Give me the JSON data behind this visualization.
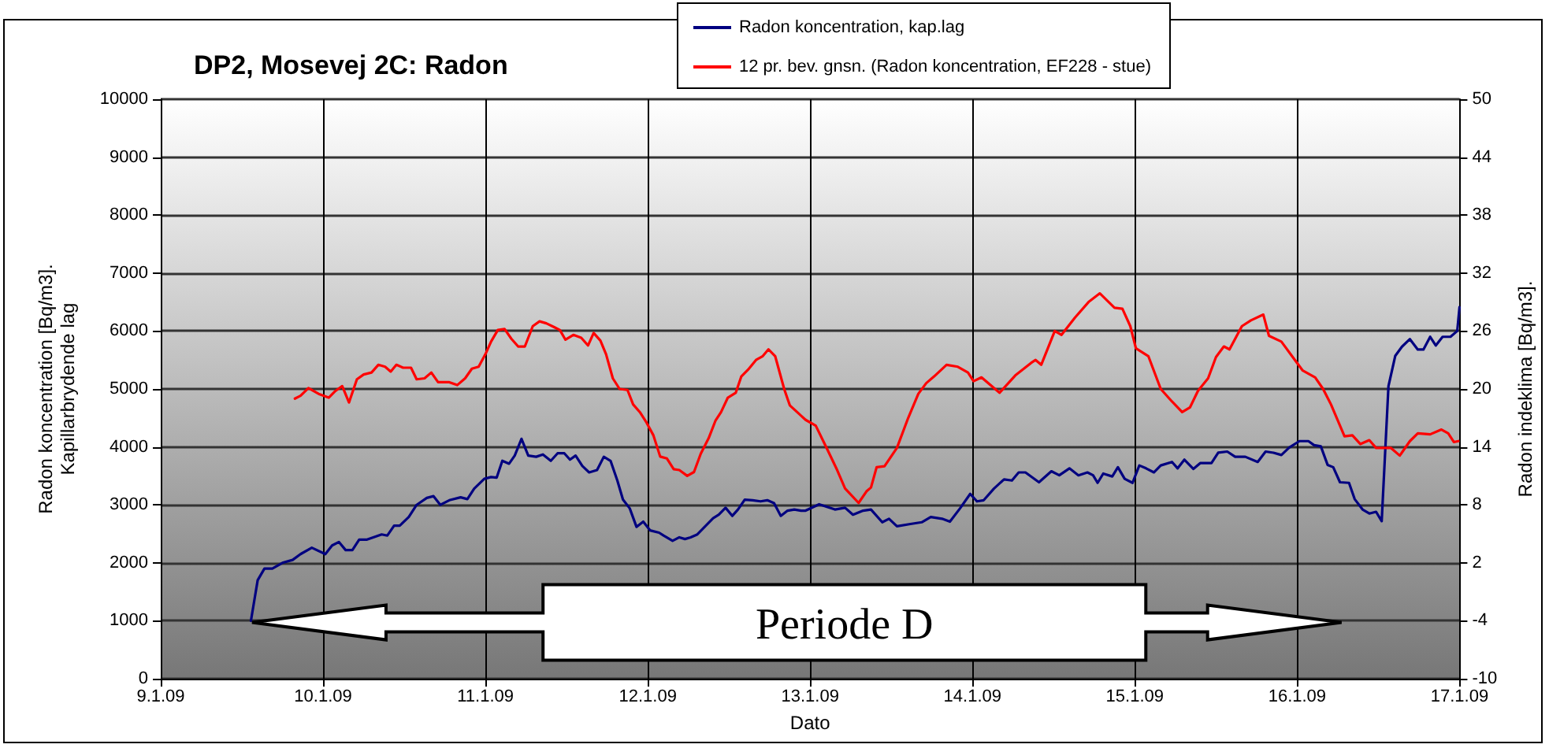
{
  "chart_data": {
    "type": "line",
    "title": "DP2, Mosevej 2C: Radon",
    "xlabel": "Dato",
    "ylabel": "Radon koncentration [Bq/m3].\nKapillarbrydende lag",
    "y2label": "Radon indeklima [Bq/m3].",
    "xlim": [
      "--01-09",
      "--01-17"
    ],
    "xticks": [
      {
        "value": "--01-09",
        "label": "9.1.09"
      },
      {
        "value": "--01-10",
        "label": "10.1.09"
      },
      {
        "value": "--01-11",
        "label": "11.1.09"
      },
      {
        "value": "--01-12",
        "label": "12.1.09"
      },
      {
        "value": "--01-13",
        "label": "13.1.09"
      },
      {
        "value": "--01-14",
        "label": "14.1.09"
      },
      {
        "value": "--01-15",
        "label": "15.1.09"
      },
      {
        "value": "--01-16",
        "label": "16.1.09"
      },
      {
        "value": "--01-17",
        "label": "17.1.09"
      }
    ],
    "ylim": [
      0,
      10000
    ],
    "yticks": [
      0,
      1000,
      2000,
      3000,
      4000,
      5000,
      6000,
      7000,
      8000,
      9000,
      10000
    ],
    "y2lim": [
      -10,
      50
    ],
    "y2ticks": [
      -10,
      -4,
      2,
      8,
      14,
      20,
      26,
      32,
      38,
      44,
      50
    ],
    "grid": true,
    "legend": "top",
    "marker": "none",
    "annotations": [
      "Periode D"
    ],
    "series": [
      {
        "name": "Radon koncentration, kap.lag",
        "color": "#000080",
        "x": [
          "--01-09T13:20",
          "--01-09T14:20",
          "--01-09T15:20",
          "--01-09T16:30",
          "--01-09T18:00",
          "--01-09T19:30",
          "--01-09T20:40",
          "--01-09T22:20",
          "--01-10T00:20",
          "--01-10T01:20",
          "--01-10T02:20",
          "--01-10T03:20",
          "--01-10T04:20",
          "--01-10T05:20",
          "--01-10T06:30",
          "--01-10T08:40",
          "--01-10T09:30",
          "--01-10T10:30",
          "--01-10T11:20",
          "--01-10T12:40",
          "--01-10T13:50",
          "--01-10T15:20",
          "--01-10T16:20",
          "--01-10T17:20",
          "--01-10T18:40",
          "--01-10T20:20",
          "--01-10T21:20",
          "--01-10T22:20",
          "--01-10T23:50",
          "--01-11T00:50",
          "--01-11T01:40",
          "--01-11T02:30",
          "--01-11T03:30",
          "--01-11T04:20",
          "--01-11T05:20",
          "--01-11T06:20",
          "--01-11T07:30",
          "--01-11T08:30",
          "--01-11T09:40",
          "--01-11T10:40",
          "--01-11T11:40",
          "--01-11T12:30",
          "--01-11T13:20",
          "--01-11T14:20",
          "--01-11T15:20",
          "--01-11T16:30",
          "--01-11T17:30",
          "--01-11T18:30",
          "--01-11T19:30",
          "--01-11T20:20",
          "--01-11T21:20",
          "--01-11T22:20",
          "--01-11T23:20",
          "--01-12T00:20",
          "--01-12T01:40",
          "--01-12T02:20",
          "--01-12T03:40",
          "--01-12T04:40",
          "--01-12T05:30",
          "--01-12T06:20",
          "--01-12T07:20",
          "--01-12T08:40",
          "--01-12T09:40",
          "--01-12T10:30",
          "--01-12T11:30",
          "--01-12T12:30",
          "--01-12T13:20",
          "--01-12T14:20",
          "--01-12T15:30",
          "--01-12T16:40",
          "--01-12T17:40",
          "--01-12T18:40",
          "--01-12T19:40",
          "--01-12T20:40",
          "--01-12T21:40",
          "--01-12T22:40",
          "--01-12T23:20",
          "--01-13T01:20",
          "--01-13T03:40",
          "--01-13T05:10",
          "--01-13T06:20",
          "--01-13T07:50",
          "--01-13T09:00",
          "--01-13T10:40",
          "--01-13T11:40",
          "--01-13T12:50",
          "--01-13T14:50",
          "--01-13T16:30",
          "--01-13T17:50",
          "--01-13T19:30",
          "--01-13T20:40",
          "--01-13T22:10",
          "--01-13T23:40",
          "--01-14T00:40",
          "--01-14T01:40",
          "--01-14T03:10",
          "--01-14T04:40",
          "--01-14T05:50",
          "--01-14T06:50",
          "--01-14T07:50",
          "--01-14T09:50",
          "--01-14T11:40",
          "--01-14T12:50",
          "--01-14T14:20",
          "--01-14T15:40",
          "--01-14T17:00",
          "--01-14T17:50",
          "--01-14T18:30",
          "--01-14T19:20",
          "--01-14T20:40",
          "--01-14T21:30",
          "--01-14T22:30",
          "--01-14T23:40",
          "--01-15T00:40",
          "--01-15T01:40",
          "--01-15T02:50",
          "--01-15T03:50",
          "--01-15T05:30",
          "--01-15T06:20",
          "--01-15T07:20",
          "--01-15T08:40",
          "--01-15T09:40",
          "--01-15T11:20",
          "--01-15T12:20",
          "--01-15T13:40",
          "--01-15T14:50",
          "--01-15T16:20",
          "--01-15T18:10",
          "--01-15T19:20",
          "--01-15T20:30",
          "--01-15T21:40",
          "--01-15T22:50",
          "--01-16T00:20",
          "--01-16T01:40",
          "--01-16T02:30",
          "--01-16T03:30",
          "--01-16T04:30",
          "--01-16T05:20",
          "--01-16T06:20",
          "--01-16T07:40",
          "--01-16T08:30",
          "--01-16T09:40",
          "--01-16T10:40",
          "--01-16T11:40",
          "--01-16T12:30",
          "--01-16T13:30",
          "--01-16T14:30",
          "--01-16T15:30",
          "--01-16T16:40",
          "--01-16T17:50",
          "--01-16T18:40",
          "--01-16T19:40",
          "--01-16T20:30",
          "--01-16T21:30",
          "--01-16T22:40",
          "--01-16T23:40",
          "--01-17T00:00"
        ],
        "values": [
          1000,
          1700,
          1900,
          1900,
          2000,
          2050,
          2150,
          2260,
          2150,
          2300,
          2360,
          2220,
          2220,
          2400,
          2400,
          2490,
          2470,
          2640,
          2640,
          2790,
          3000,
          3120,
          3150,
          3000,
          3080,
          3130,
          3100,
          3280,
          3450,
          3480,
          3470,
          3760,
          3710,
          3850,
          4140,
          3850,
          3830,
          3870,
          3760,
          3890,
          3890,
          3780,
          3850,
          3670,
          3560,
          3600,
          3830,
          3760,
          3420,
          3090,
          2940,
          2620,
          2710,
          2560,
          2520,
          2470,
          2380,
          2440,
          2410,
          2440,
          2490,
          2650,
          2770,
          2830,
          2950,
          2810,
          2920,
          3090,
          3080,
          3060,
          3080,
          3030,
          2810,
          2900,
          2920,
          2900,
          2900,
          3010,
          2920,
          2950,
          2830,
          2900,
          2920,
          2700,
          2760,
          2630,
          2670,
          2700,
          2790,
          2760,
          2710,
          2940,
          3190,
          3060,
          3080,
          3280,
          3440,
          3420,
          3560,
          3560,
          3390,
          3580,
          3510,
          3630,
          3510,
          3560,
          3510,
          3380,
          3540,
          3490,
          3650,
          3450,
          3380,
          3680,
          3630,
          3560,
          3680,
          3740,
          3630,
          3780,
          3620,
          3720,
          3720,
          3900,
          3920,
          3830,
          3830,
          3740,
          3920,
          3900,
          3860,
          3990,
          4100,
          4100,
          4030,
          4010,
          3690,
          3650,
          3390,
          3380,
          3100,
          2920,
          2850,
          2880,
          2720,
          5050,
          5570,
          5730,
          5860,
          5680,
          5680,
          5900,
          5750,
          5900,
          5900,
          6000,
          6410
        ]
      },
      {
        "name": "12 pr. bev. gnsn. (Radon koncentration, EF228 - stue)",
        "color": "#ff0000",
        "axis": "y2",
        "x": [
          "--01-09T19:50",
          "--01-09T20:40",
          "--01-09T21:50",
          "--01-09T23:20",
          "--01-10T00:50",
          "--01-10T01:50",
          "--01-10T02:50",
          "--01-10T03:50",
          "--01-10T05:00",
          "--01-10T06:00",
          "--01-10T07:10",
          "--01-10T08:10",
          "--01-10T09:10",
          "--01-10T10:00",
          "--01-10T10:50",
          "--01-10T11:50",
          "--01-10T13:00",
          "--01-10T13:50",
          "--01-10T15:00",
          "--01-10T16:00",
          "--01-10T17:00",
          "--01-10T18:40",
          "--01-10T19:50",
          "--01-10T21:00",
          "--01-10T22:00",
          "--01-10T23:00",
          "--01-11T00:00",
          "--01-11T00:50",
          "--01-11T01:50",
          "--01-11T02:50",
          "--01-11T03:50",
          "--01-11T04:50",
          "--01-11T05:50",
          "--01-11T07:00",
          "--01-11T08:00",
          "--01-11T09:00",
          "--01-11T10:10",
          "--01-11T11:00",
          "--01-11T11:50",
          "--01-11T13:00",
          "--01-11T14:10",
          "--01-11T15:10",
          "--01-11T16:00",
          "--01-11T17:00",
          "--01-11T17:50",
          "--01-11T18:50",
          "--01-11T19:50",
          "--01-11T21:00",
          "--01-11T21:50",
          "--01-11T22:50",
          "--01-11T23:50",
          "--01-12T00:50",
          "--01-12T01:50",
          "--01-12T02:50",
          "--01-12T03:50",
          "--01-12T04:40",
          "--01-12T05:50",
          "--01-12T06:50",
          "--01-12T07:50",
          "--01-12T09:00",
          "--01-12T10:00",
          "--01-12T10:50",
          "--01-12T11:50",
          "--01-12T13:00",
          "--01-12T13:50",
          "--01-12T14:50",
          "--01-12T16:00",
          "--01-12T17:00",
          "--01-12T17:50",
          "--01-12T18:50",
          "--01-12T20:10",
          "--01-12T21:00",
          "--01-12T23:20",
          "--01-13T00:50",
          "--01-13T02:30",
          "--01-13T04:00",
          "--01-13T05:10",
          "--01-13T07:10",
          "--01-13T08:20",
          "--01-13T09:00",
          "--01-13T09:50",
          "--01-13T11:00",
          "--01-13T12:50",
          "--01-13T14:30",
          "--01-13T16:00",
          "--01-13T17:10",
          "--01-13T18:20",
          "--01-13T20:10",
          "--01-13T21:50",
          "--01-13T23:20",
          "--01-14T00:10",
          "--01-14T01:20",
          "--01-14T02:50",
          "--01-14T04:00",
          "--01-14T06:20",
          "--01-14T08:40",
          "--01-14T09:20",
          "--01-14T10:10",
          "--01-14T12:10",
          "--01-14T13:10",
          "--01-14T15:10",
          "--01-14T17:10",
          "--01-14T18:50",
          "--01-14T21:00",
          "--01-14T22:10",
          "--01-14T23:20",
          "--01-15T00:10",
          "--01-15T02:00",
          "--01-15T03:50",
          "--01-15T05:30",
          "--01-15T07:00",
          "--01-15T08:10",
          "--01-15T09:20",
          "--01-15T10:50",
          "--01-15T12:00",
          "--01-15T13:10",
          "--01-15T14:00",
          "--01-15T15:50",
          "--01-15T17:10",
          "--01-15T19:00",
          "--01-15T19:50",
          "--01-15T21:40",
          "--01-15T23:40",
          "--01-16T00:50",
          "--01-16T02:40",
          "--01-16T03:50",
          "--01-16T05:00",
          "--01-16T07:00",
          "--01-16T08:10",
          "--01-16T09:20",
          "--01-16T10:40",
          "--01-16T11:40",
          "--01-16T13:50",
          "--01-16T15:10",
          "--01-16T16:40",
          "--01-16T17:50",
          "--01-16T19:40",
          "--01-16T21:20",
          "--01-16T22:20",
          "--01-16T23:10",
          "--01-16T23:50"
        ],
        "values": [
          19.0,
          19.3,
          20.1,
          19.5,
          19.1,
          19.8,
          20.3,
          18.6,
          21.0,
          21.5,
          21.7,
          22.5,
          22.3,
          21.8,
          22.5,
          22.2,
          22.2,
          21.0,
          21.1,
          21.7,
          20.7,
          20.7,
          20.4,
          21.1,
          22.1,
          22.3,
          23.6,
          24.9,
          26.1,
          26.2,
          25.2,
          24.4,
          24.4,
          26.5,
          27.0,
          26.8,
          26.4,
          26.1,
          25.1,
          25.6,
          25.3,
          24.5,
          25.8,
          25.0,
          23.6,
          21.1,
          20.0,
          19.9,
          18.4,
          17.6,
          16.5,
          15.2,
          13.0,
          12.8,
          11.7,
          11.6,
          11.0,
          11.4,
          13.3,
          14.9,
          16.7,
          17.6,
          19.1,
          19.6,
          21.3,
          22.0,
          23.0,
          23.4,
          24.1,
          23.4,
          20.0,
          18.3,
          16.8,
          16.2,
          13.8,
          11.6,
          9.7,
          8.2,
          9.4,
          9.8,
          11.9,
          12.0,
          13.9,
          17.0,
          19.5,
          20.6,
          21.3,
          22.5,
          22.3,
          21.7,
          20.8,
          21.2,
          20.3,
          19.6,
          21.4,
          22.7,
          23.0,
          22.5,
          26.0,
          25.6,
          27.4,
          29.0,
          29.9,
          28.4,
          28.3,
          26.5,
          24.2,
          23.4,
          20.0,
          18.7,
          17.6,
          18.1,
          19.8,
          21.1,
          23.3,
          24.4,
          24.1,
          26.5,
          27.1,
          27.7,
          25.5,
          24.9,
          23.0,
          21.9,
          21.2,
          20.0,
          18.4,
          15.1,
          15.2,
          14.3,
          14.7,
          13.9,
          13.9,
          13.1,
          14.6,
          15.4,
          15.3,
          15.8,
          15.4,
          14.5,
          14.6
        ]
      }
    ]
  }
}
